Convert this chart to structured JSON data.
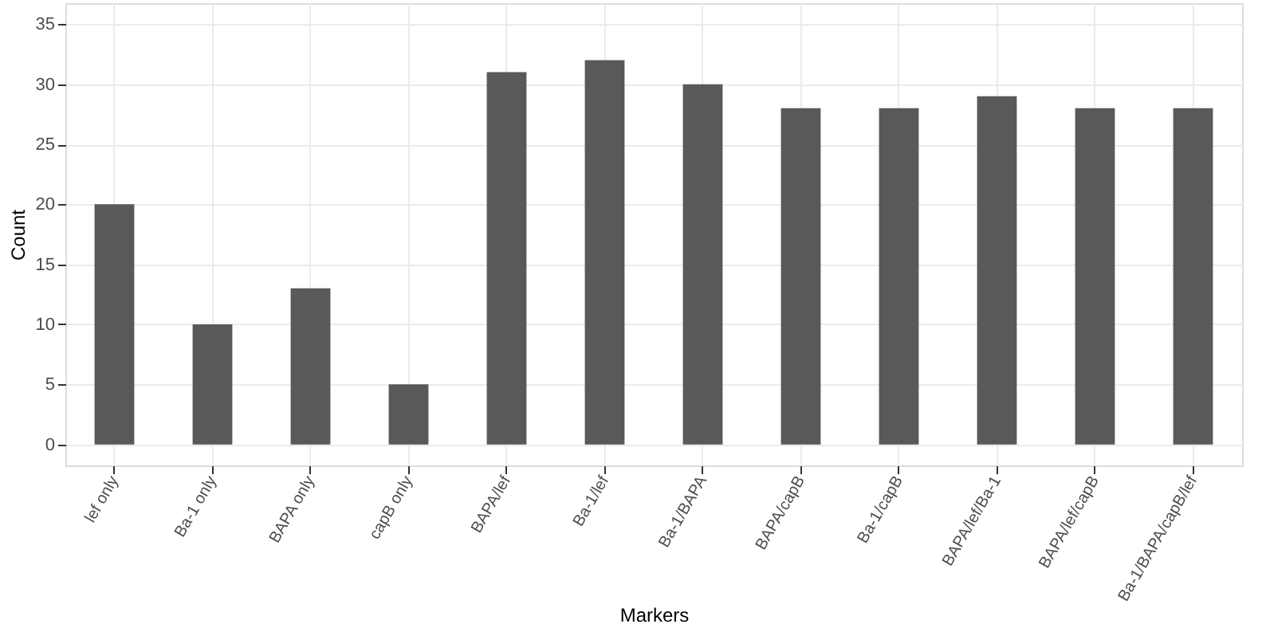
{
  "chart_data": {
    "type": "bar",
    "xlabel": "Markers",
    "ylabel": "Count",
    "categories": [
      "lef only",
      "Ba-1 only",
      "BAPA only",
      "capB only",
      "BAPA/lef",
      "Ba-1/lef",
      "Ba-1/BAPA",
      "BAPA/capB",
      "Ba-1/capB",
      "BAPA/lef/Ba-1",
      "BAPA/lef/capB",
      "Ba-1/BAPA/capB/lef"
    ],
    "values": [
      20,
      10,
      13,
      5,
      31,
      32,
      30,
      28,
      28,
      29,
      28,
      28
    ],
    "color": "#595959",
    "ylim": [
      -1.75,
      36.75
    ],
    "yticks": [
      0,
      5,
      10,
      15,
      20,
      25,
      30,
      35
    ],
    "grid": true
  }
}
